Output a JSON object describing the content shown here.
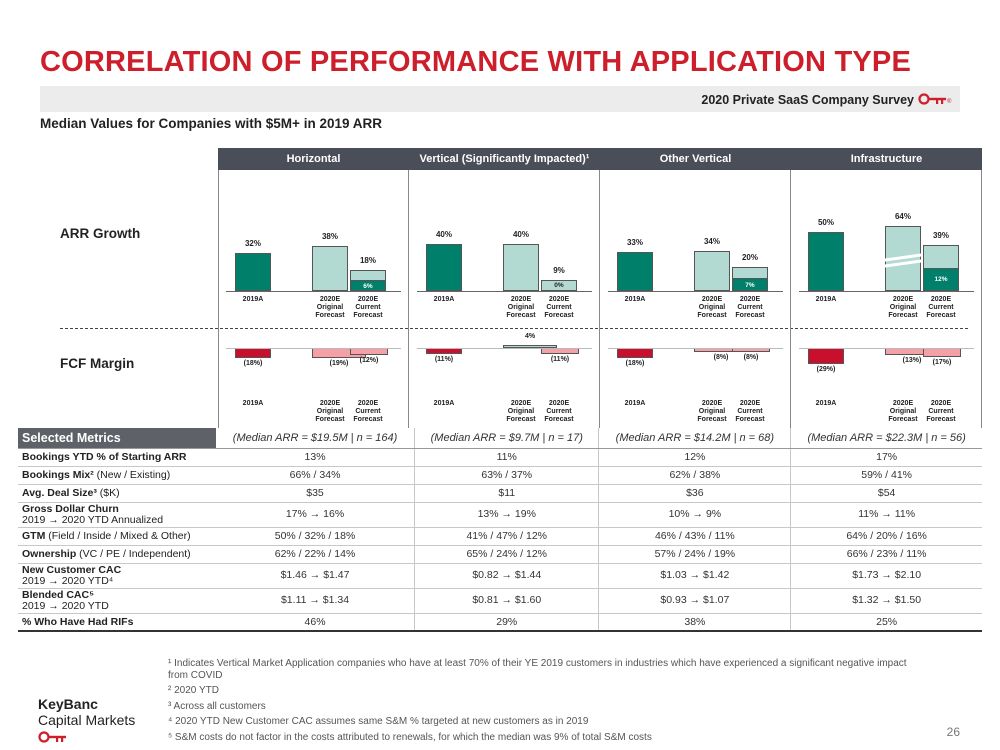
{
  "title": "CORRELATION OF PERFORMANCE WITH APPLICATION TYPE",
  "survey_label": "2020 Private SaaS Company Survey",
  "subtitle": "Median Values for Companies with $5M+ in 2019 ARR",
  "row_labels": {
    "arr": "ARR Growth",
    "fcf": "FCF Margin"
  },
  "axis_labels": {
    "y2019": "2019A",
    "orig": "2020E Original Forecast",
    "curr": "2020E Current Forecast",
    "orig_l1": "2020E",
    "orig_l2": "Original",
    "orig_l3": "Forecast",
    "curr_l1": "2020E",
    "curr_l2": "Current",
    "curr_l3": "Forecast"
  },
  "columns": [
    {
      "name": "Horizontal",
      "median": "(Median ARR = $19.5M | n = 164)"
    },
    {
      "name": "Vertical (Significantly Impacted)¹",
      "median": "(Median ARR = $9.7M | n = 17)"
    },
    {
      "name": "Other Vertical",
      "median": "(Median ARR = $14.2M | n = 68)"
    },
    {
      "name": "Infrastructure",
      "median": "(Median ARR = $22.3M | n = 56)"
    }
  ],
  "chart_data": [
    {
      "type": "bar",
      "title": "Horizontal",
      "arr_growth": {
        "y2019": 32,
        "orig": 38,
        "curr": 18,
        "curr_inner": 6
      },
      "fcf_margin": {
        "y2019": -18,
        "orig": -19,
        "curr": -12
      },
      "labels": {
        "arr": [
          "32%",
          "38%",
          "18%",
          "6%"
        ],
        "fcf": [
          "(18%)",
          "(19%)",
          "(12%)"
        ]
      }
    },
    {
      "type": "bar",
      "title": "Vertical (Significantly Impacted)¹",
      "arr_growth": {
        "y2019": 40,
        "orig": 40,
        "curr": 9,
        "curr_inner": 0
      },
      "fcf_margin": {
        "y2019": -11,
        "orig": 4,
        "curr": -11
      },
      "labels": {
        "arr": [
          "40%",
          "40%",
          "9%",
          "0%"
        ],
        "fcf": [
          "(11%)",
          "4%",
          "(11%)"
        ]
      }
    },
    {
      "type": "bar",
      "title": "Other Vertical",
      "arr_growth": {
        "y2019": 33,
        "orig": 34,
        "curr": 20,
        "curr_inner": 7
      },
      "fcf_margin": {
        "y2019": -18,
        "orig": -8,
        "curr": -8
      },
      "labels": {
        "arr": [
          "33%",
          "34%",
          "20%",
          "7%"
        ],
        "fcf": [
          "(18%)",
          "(8%)",
          "(8%)"
        ]
      }
    },
    {
      "type": "bar",
      "title": "Infrastructure",
      "arr_growth": {
        "y2019": 50,
        "orig": 64,
        "curr": 39,
        "curr_inner": 12
      },
      "fcf_margin": {
        "y2019": -29,
        "orig": -13,
        "curr": -17
      },
      "labels": {
        "arr": [
          "50%",
          "64%",
          "39%",
          "12%"
        ],
        "fcf": [
          "(29%)",
          "(13%)",
          "(17%)"
        ]
      }
    }
  ],
  "metrics_header": "Selected Metrics",
  "metrics": [
    {
      "label_bold": "Bookings YTD % of Starting ARR",
      "label_rest": "",
      "label2": "",
      "values": [
        "13%",
        "11%",
        "12%",
        "17%"
      ]
    },
    {
      "label_bold": "Bookings Mix²",
      "label_rest": " (New / Existing)",
      "label2": "",
      "values": [
        "66% / 34%",
        "63% / 37%",
        "62% / 38%",
        "59% / 41%"
      ]
    },
    {
      "label_bold": "Avg. Deal Size³",
      "label_rest": " ($K)",
      "label2": "",
      "values": [
        "$35",
        "$11",
        "$36",
        "$54"
      ]
    },
    {
      "label_bold": "Gross Dollar Churn",
      "label_rest": "",
      "label2": "2019 → 2020 YTD Annualized",
      "values": [
        "17% → 16%",
        "13% → 19%",
        "10% → 9%",
        "11% → 11%"
      ]
    },
    {
      "label_bold": "GTM",
      "label_rest": " (Field / Inside / Mixed & Other)",
      "label2": "",
      "values": [
        "50% / 32% / 18%",
        "41% / 47% / 12%",
        "46% / 43% / 11%",
        "64% / 20% / 16%"
      ]
    },
    {
      "label_bold": "Ownership",
      "label_rest": " (VC / PE / Independent)",
      "label2": "",
      "values": [
        "62% / 22% / 14%",
        "65% / 24% / 12%",
        "57% / 24% / 19%",
        "66% / 23% / 11%"
      ]
    },
    {
      "label_bold": "New Customer CAC",
      "label_rest": "",
      "label2": "2019 → 2020 YTD⁴",
      "values": [
        "$1.46 → $1.47",
        "$0.82 → $1.44",
        "$1.03 → $1.42",
        "$1.73 → $2.10"
      ]
    },
    {
      "label_bold": "Blended CAC⁵",
      "label_rest": "",
      "label2": "2019 → 2020 YTD",
      "values": [
        "$1.11 → $1.34",
        "$0.81 → $1.60",
        "$0.93 → $1.07",
        "$1.32 → $1.50"
      ]
    },
    {
      "label_bold": "% Who Have Had RIFs",
      "label_rest": "",
      "label2": "",
      "values": [
        "46%",
        "29%",
        "38%",
        "25%"
      ]
    }
  ],
  "footnotes": [
    "¹ Indicates Vertical Market Application companies who have at least 70% of their YE 2019 customers in industries which have experienced a significant negative impact from COVID",
    "² 2020 YTD",
    "³ Across all customers",
    "⁴ 2020 YTD New Customer CAC assumes same S&M % targeted at new customers as in 2019",
    "⁵ S&M costs do not factor in the costs attributed to renewals, for which the median was 9% of total S&M costs"
  ],
  "logo": {
    "line1": "KeyBanc",
    "line2": "Capital Markets"
  },
  "page_number": "26",
  "colors": {
    "accent": "#cc1f2b",
    "dark_teal": "#00806a",
    "light_teal": "#b3d9d3",
    "red": "#c8102e",
    "pink": "#f4a0a6",
    "header": "#4a4e58"
  },
  "icons": [
    "key-icon"
  ]
}
